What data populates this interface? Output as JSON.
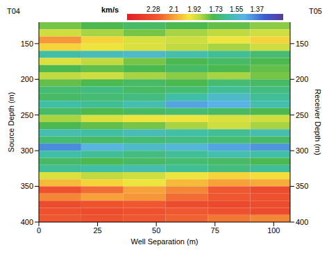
{
  "chart_data": {
    "type": "heatmap",
    "x_label": "Well Separation (m)",
    "y_label": "Source Depth (m)",
    "y2_label": "Receiver Depth (m)",
    "annotations": [
      "T04",
      "T05"
    ],
    "xlim": [
      0,
      107
    ],
    "xticks": [
      0,
      25,
      50,
      75,
      100
    ],
    "ylim": [
      120,
      400
    ],
    "yticks": [
      150,
      200,
      250,
      300,
      350,
      400
    ],
    "y2lim": [
      120,
      400
    ],
    "y2ticks": [
      150,
      200,
      250,
      300,
      350,
      400
    ],
    "grid": false,
    "colorbar": {
      "label": "km/s",
      "range": [
        1.14,
        2.51
      ],
      "ticks": [
        2.28,
        2.1,
        1.92,
        1.73,
        1.55,
        1.37
      ]
    },
    "cells": {
      "x_edges": [
        0,
        18,
        36,
        54,
        72,
        90,
        107
      ],
      "y_edges": [
        120,
        130,
        140,
        150,
        160,
        170,
        180,
        190,
        200,
        210,
        220,
        230,
        240,
        250,
        260,
        270,
        280,
        290,
        300,
        310,
        320,
        330,
        340,
        350,
        360,
        370,
        380,
        390,
        400
      ],
      "values": [
        [
          1.8,
          1.75,
          1.72,
          1.75,
          1.78,
          1.82
        ],
        [
          1.9,
          1.85,
          1.8,
          1.85,
          1.88,
          1.9
        ],
        [
          2.12,
          2.0,
          1.92,
          1.9,
          1.95,
          2.0
        ],
        [
          2.0,
          1.95,
          1.92,
          1.88,
          1.85,
          1.9
        ],
        [
          1.62,
          1.58,
          1.55,
          1.6,
          1.65,
          1.7
        ],
        [
          1.92,
          1.88,
          1.8,
          1.75,
          1.72,
          1.75
        ],
        [
          1.75,
          1.78,
          1.75,
          1.72,
          1.75,
          1.78
        ],
        [
          1.88,
          1.9,
          1.85,
          1.82,
          1.85,
          1.8
        ],
        [
          1.78,
          1.75,
          1.72,
          1.75,
          1.7,
          1.72
        ],
        [
          1.7,
          1.68,
          1.72,
          1.7,
          1.65,
          1.68
        ],
        [
          1.72,
          1.7,
          1.68,
          1.62,
          1.55,
          1.65
        ],
        [
          1.62,
          1.65,
          1.6,
          1.45,
          1.48,
          1.6
        ],
        [
          1.72,
          1.75,
          1.72,
          1.7,
          1.72,
          1.75
        ],
        [
          1.85,
          1.92,
          1.95,
          1.95,
          1.92,
          1.9
        ],
        [
          1.75,
          1.78,
          1.8,
          1.85,
          1.9,
          1.85
        ],
        [
          1.6,
          1.62,
          1.58,
          1.62,
          1.65,
          1.6
        ],
        [
          1.7,
          1.72,
          1.7,
          1.68,
          1.7,
          1.72
        ],
        [
          1.4,
          1.5,
          1.55,
          1.52,
          1.45,
          1.42
        ],
        [
          1.62,
          1.65,
          1.68,
          1.65,
          1.6,
          1.62
        ],
        [
          1.72,
          1.75,
          1.72,
          1.7,
          1.72,
          1.75
        ],
        [
          1.65,
          1.62,
          1.6,
          1.65,
          1.68,
          1.65
        ],
        [
          1.92,
          1.88,
          1.9,
          1.95,
          2.0,
          1.98
        ],
        [
          2.05,
          2.0,
          1.95,
          2.05,
          2.1,
          2.08
        ],
        [
          2.28,
          2.2,
          2.1,
          2.15,
          2.25,
          2.3
        ],
        [
          2.15,
          2.1,
          2.12,
          2.2,
          2.25,
          2.28
        ],
        [
          2.3,
          2.28,
          2.25,
          2.3,
          2.32,
          2.3
        ],
        [
          2.28,
          2.3,
          2.28,
          2.25,
          2.28,
          2.3
        ],
        [
          2.25,
          2.28,
          2.25,
          2.22,
          2.18,
          2.15
        ]
      ]
    }
  }
}
